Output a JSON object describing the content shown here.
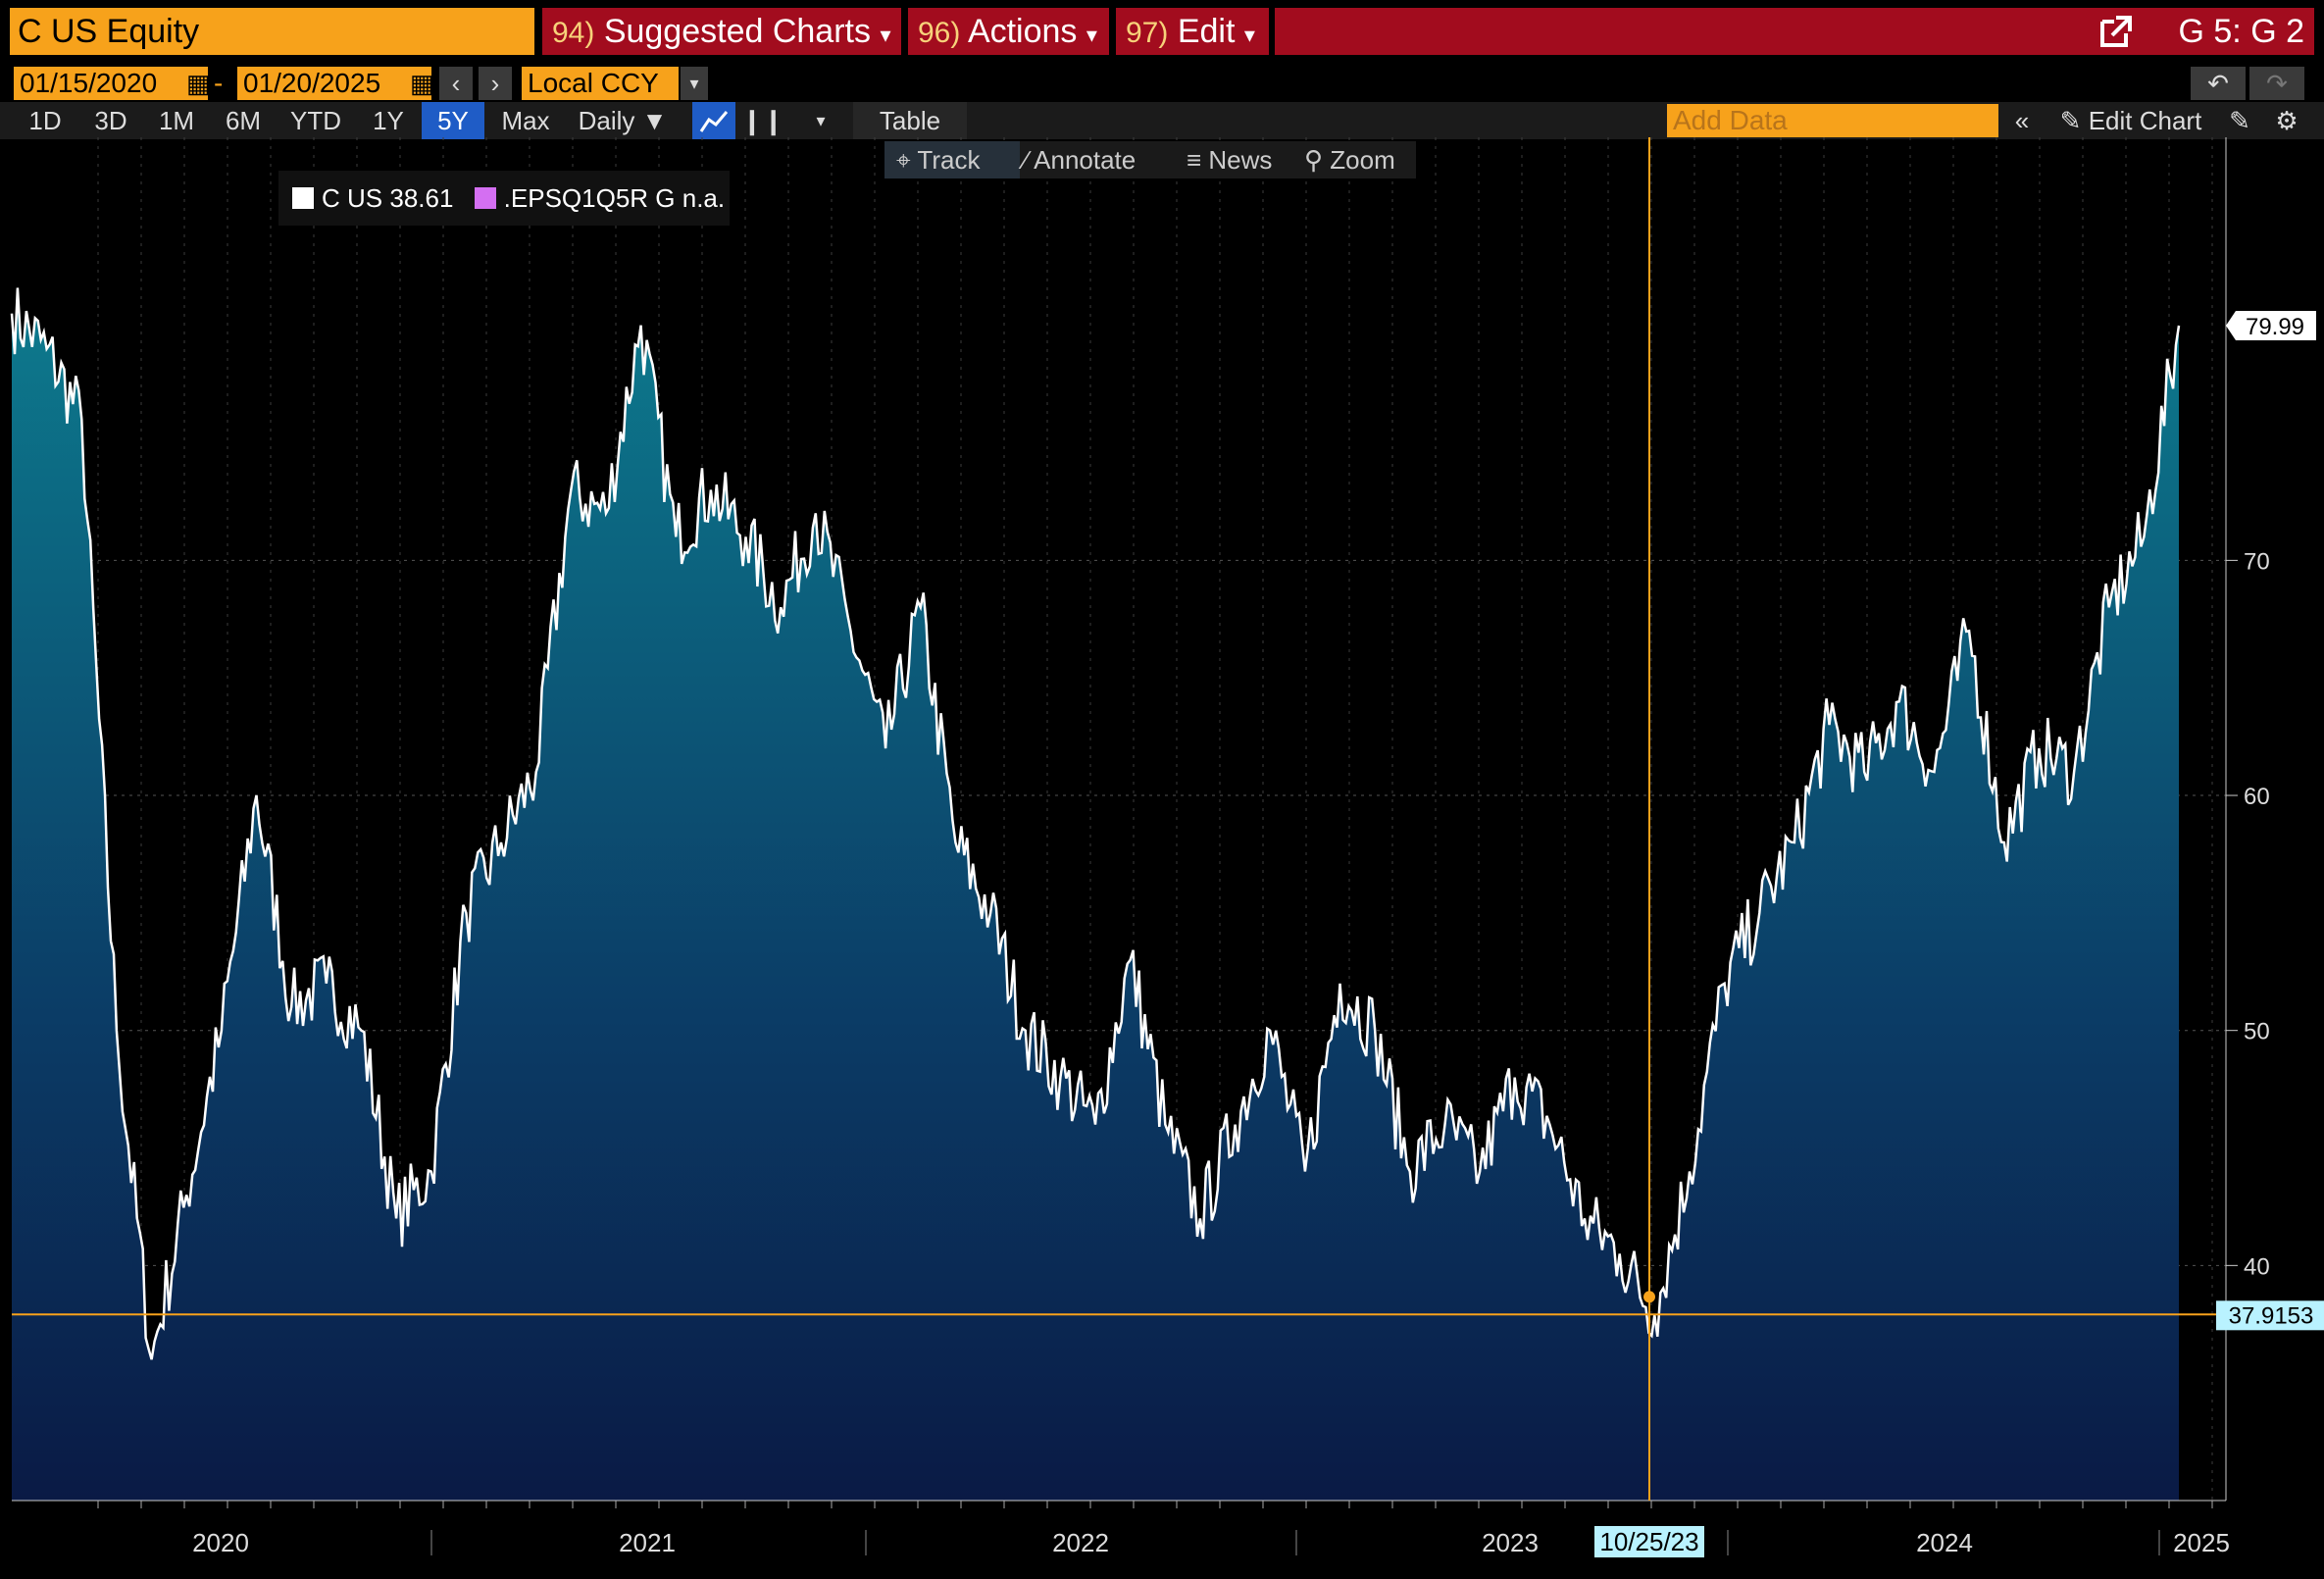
{
  "header": {
    "ticker": "C US Equity",
    "menu": [
      {
        "num": "94)",
        "label": "Suggested Charts"
      },
      {
        "num": "96)",
        "label": "Actions"
      },
      {
        "num": "97)",
        "label": "Edit"
      }
    ],
    "chart_id": "G 5: G 2"
  },
  "range": {
    "start": "01/15/2020",
    "end": "01/20/2025",
    "dash": "-",
    "currency": "Local CCY"
  },
  "periods": [
    "1D",
    "3D",
    "1M",
    "6M",
    "YTD",
    "1Y",
    "5Y",
    "Max"
  ],
  "active_period": "5Y",
  "frequency": "Daily",
  "table_label": "Table",
  "add_data_placeholder": "Add Data",
  "edit_chart_label": "Edit Chart",
  "tools": [
    "Track",
    "Annotate",
    "News",
    "Zoom"
  ],
  "legend": [
    {
      "name": "C US",
      "value": "38.61",
      "color": "#ffffff"
    },
    {
      "name": ".EPSQ1Q5R G",
      "value": "n.a.",
      "color": "#d46ff2"
    }
  ],
  "colors": {
    "accent": "#f7a21b",
    "header_red": "#a20c1e",
    "line": "#ffffff",
    "fill_top": "#0d7b8e",
    "fill_bottom": "#0a1a45"
  },
  "chart_data": {
    "type": "area",
    "x_ticks": [
      "2020",
      "2021",
      "2022",
      "2023",
      "2024",
      "2025"
    ],
    "y_ticks": [
      40,
      50,
      60,
      70
    ],
    "ylim": [
      30,
      88
    ],
    "last_price": "79.99",
    "crosshair": {
      "date": "10/25/23",
      "value": "37.9153"
    },
    "series": [
      {
        "name": "C US",
        "x": [
          "2019-12",
          "2020-01",
          "2020-02",
          "2020-03",
          "2020-03b",
          "2020-04",
          "2020-05",
          "2020-06",
          "2020-07",
          "2020-08",
          "2020-09",
          "2020-10",
          "2020-11",
          "2020-12",
          "2021-01",
          "2021-02",
          "2021-03",
          "2021-04",
          "2021-05",
          "2021-06",
          "2021-07",
          "2021-08",
          "2021-09",
          "2021-10",
          "2021-11",
          "2021-12",
          "2022-01",
          "2022-02",
          "2022-03",
          "2022-04",
          "2022-05",
          "2022-06",
          "2022-07",
          "2022-08",
          "2022-09",
          "2022-10",
          "2022-11",
          "2022-12",
          "2023-01",
          "2023-02",
          "2023-03",
          "2023-04",
          "2023-05",
          "2023-06",
          "2023-07",
          "2023-08",
          "2023-09",
          "2023-10",
          "2023-11",
          "2023-12",
          "2024-01",
          "2024-02",
          "2024-03",
          "2024-04",
          "2024-05",
          "2024-06",
          "2024-07",
          "2024-08",
          "2024-09",
          "2024-10",
          "2024-11",
          "2024-12",
          "2025-01"
        ],
        "values": [
          80.5,
          79.0,
          76.0,
          50.0,
          36.0,
          43.0,
          50.0,
          60.0,
          51.0,
          52.0,
          50.0,
          42.0,
          44.0,
          55.0,
          58.0,
          61.0,
          73.0,
          72.0,
          80.0,
          71.0,
          73.0,
          71.0,
          68.0,
          72.0,
          67.0,
          62.0,
          68.0,
          58.0,
          55.0,
          50.0,
          48.0,
          46.0,
          53.0,
          46.0,
          42.0,
          46.0,
          50.0,
          44.0,
          52.0,
          50.0,
          44.0,
          46.0,
          44.0,
          48.0,
          46.0,
          42.0,
          40.5,
          37.9,
          44.0,
          52.0,
          55.0,
          58.0,
          63.0,
          61.0,
          64.0,
          61.0,
          67.0,
          58.0,
          62.0,
          61.0,
          68.0,
          71.0,
          79.99
        ]
      }
    ]
  }
}
